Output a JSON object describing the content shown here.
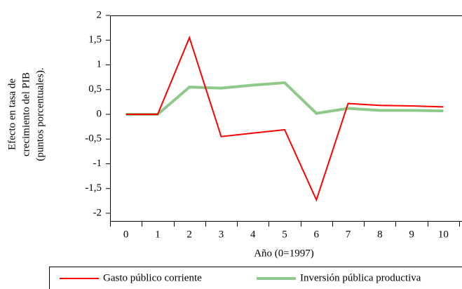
{
  "chart_data": {
    "type": "line",
    "x_label": "Año (0=1997)",
    "y_label": [
      "Efecto en tasa de",
      "crecimiento del PIB",
      "(puntos porcentuales)."
    ],
    "categories": [
      "0",
      "1",
      "2",
      "3",
      "4",
      "5",
      "6",
      "7",
      "8",
      "9",
      "10"
    ],
    "series": [
      {
        "name": "Gasto público corriente",
        "color": "#ff0000",
        "width": 2,
        "values": [
          0,
          0,
          1.55,
          -0.45,
          -0.38,
          -0.31,
          -1.73,
          0.22,
          0.18,
          0.17,
          0.15
        ]
      },
      {
        "name": "Inversión pública productiva",
        "color": "#8fc98a",
        "width": 4,
        "values": [
          0,
          0,
          0.55,
          0.53,
          0.59,
          0.64,
          0.02,
          0.12,
          0.08,
          0.08,
          0.07
        ]
      }
    ],
    "ylim": [
      -2,
      2
    ],
    "yticks": [
      -2,
      {
        "value": -1.5,
        "label": "-1,5"
      },
      -1,
      {
        "value": -0.5,
        "label": "-0,5"
      },
      0,
      {
        "value": 0.5,
        "label": "0,5"
      },
      1,
      {
        "value": 1.5,
        "label": "1,5"
      },
      2
    ],
    "grid": false,
    "legend": "bottom"
  }
}
